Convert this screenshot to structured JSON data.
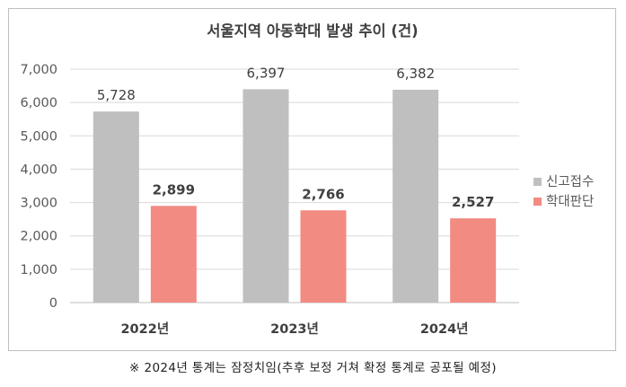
{
  "chart_data": {
    "type": "bar",
    "title": "서울지역 아동학대 발생 추이 (건)",
    "categories": [
      "2022년",
      "2023년",
      "2024년"
    ],
    "series": [
      {
        "name": "신고접수",
        "values": [
          5728,
          6397,
          6382
        ],
        "labels": [
          "5,728",
          "6,397",
          "6,382"
        ],
        "color": "#bfbfbf",
        "label_weight": "normal"
      },
      {
        "name": "학대판단",
        "values": [
          2899,
          2766,
          2527
        ],
        "labels": [
          "2,899",
          "2,766",
          "2,527"
        ],
        "color": "#f28b82",
        "label_weight": "bold"
      }
    ],
    "ylim": [
      0,
      7000
    ],
    "yticks": [
      0,
      1000,
      2000,
      3000,
      4000,
      5000,
      6000,
      7000
    ],
    "ytick_labels": [
      "0",
      "1,000",
      "2,000",
      "3,000",
      "4,000",
      "5,000",
      "6,000",
      "7,000"
    ],
    "grid": true,
    "legend_position": "right"
  },
  "footnote": "※ 2024년 통계는 잠정치임(추후 보정 거쳐 확정 통계로 공포될 예정)"
}
